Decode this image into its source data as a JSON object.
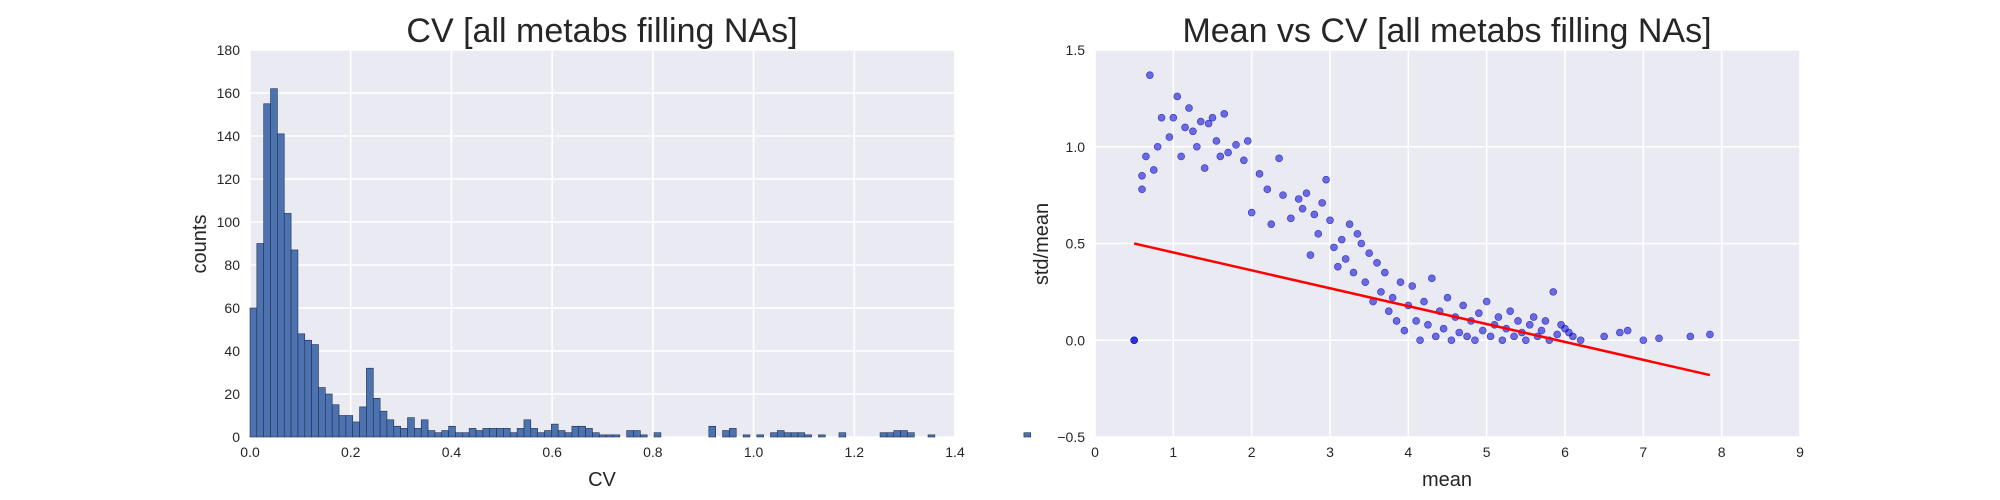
{
  "chart_data": [
    {
      "type": "bar",
      "title": "CV [all metabs filling NAs]",
      "xlabel": "CV",
      "ylabel": "counts",
      "xlim": [
        0,
        1.4
      ],
      "ylim": [
        0,
        180
      ],
      "xticks": [
        "0.0",
        "0.2",
        "0.4",
        "0.6",
        "0.8",
        "1.0",
        "1.2",
        "1.4"
      ],
      "yticks": [
        "0",
        "20",
        "40",
        "60",
        "80",
        "100",
        "120",
        "140",
        "160",
        "180"
      ],
      "grid": true,
      "color": "#4c72b0",
      "bin_width": 0.0136,
      "bin_start": 0.0,
      "counts": [
        60,
        90,
        155,
        162,
        141,
        104,
        87,
        48,
        45,
        43,
        23,
        20,
        15,
        10,
        10,
        7,
        14,
        32,
        18,
        12,
        8,
        5,
        4,
        9,
        4,
        8,
        3,
        2,
        3,
        5,
        2,
        2,
        4,
        3,
        4,
        4,
        4,
        4,
        2,
        4,
        8,
        4,
        2,
        3,
        6,
        3,
        2,
        5,
        5,
        4,
        2,
        1,
        1,
        1,
        0,
        3,
        3,
        1,
        0,
        2,
        0,
        0,
        0,
        0,
        0,
        0,
        0,
        5,
        0,
        3,
        4,
        0,
        1,
        0,
        1,
        0,
        2,
        3,
        2,
        2,
        2,
        1,
        0,
        1,
        0,
        0,
        2,
        0,
        0,
        0,
        0,
        0,
        2,
        2,
        3,
        3,
        2,
        0,
        0,
        1,
        0,
        0,
        0,
        0,
        0,
        0,
        0,
        0,
        0,
        0,
        0,
        0,
        0,
        2,
        0,
        0,
        0,
        0,
        0,
        0
      ]
    },
    {
      "type": "scatter",
      "title": "Mean vs CV [all metabs filling NAs]",
      "xlabel": "mean",
      "ylabel": "std/mean",
      "xlim": [
        0,
        9
      ],
      "ylim": [
        -0.5,
        1.5
      ],
      "xticks": [
        "0",
        "1",
        "2",
        "3",
        "4",
        "5",
        "6",
        "7",
        "8",
        "9"
      ],
      "yticks": [
        "−0.5",
        "0.0",
        "0.5",
        "1.0",
        "1.5"
      ],
      "grid": true,
      "point_color": "#0000cc",
      "line_color": "#ff0000",
      "fit_line": {
        "x": [
          0.5,
          7.85
        ],
        "y": [
          0.5,
          -0.18
        ]
      },
      "points": [
        [
          0.5,
          0.0
        ],
        [
          0.5,
          0.0
        ],
        [
          0.6,
          0.78
        ],
        [
          0.6,
          0.85
        ],
        [
          0.65,
          0.95
        ],
        [
          0.7,
          1.37
        ],
        [
          0.75,
          0.88
        ],
        [
          0.8,
          1.0
        ],
        [
          0.85,
          1.15
        ],
        [
          0.95,
          1.05
        ],
        [
          1.0,
          1.15
        ],
        [
          1.05,
          1.26
        ],
        [
          1.1,
          0.95
        ],
        [
          1.15,
          1.1
        ],
        [
          1.2,
          1.2
        ],
        [
          1.25,
          1.08
        ],
        [
          1.3,
          1.0
        ],
        [
          1.35,
          1.13
        ],
        [
          1.4,
          0.89
        ],
        [
          1.45,
          1.12
        ],
        [
          1.5,
          1.15
        ],
        [
          1.55,
          1.03
        ],
        [
          1.6,
          0.95
        ],
        [
          1.65,
          1.17
        ],
        [
          1.7,
          0.97
        ],
        [
          1.8,
          1.01
        ],
        [
          1.9,
          0.93
        ],
        [
          1.95,
          1.03
        ],
        [
          2.0,
          0.66
        ],
        [
          2.1,
          0.86
        ],
        [
          2.2,
          0.78
        ],
        [
          2.25,
          0.6
        ],
        [
          2.35,
          0.94
        ],
        [
          2.4,
          0.75
        ],
        [
          2.5,
          0.63
        ],
        [
          2.6,
          0.73
        ],
        [
          2.65,
          0.68
        ],
        [
          2.7,
          0.76
        ],
        [
          2.75,
          0.44
        ],
        [
          2.8,
          0.65
        ],
        [
          2.85,
          0.55
        ],
        [
          2.9,
          0.71
        ],
        [
          2.95,
          0.83
        ],
        [
          3.0,
          0.62
        ],
        [
          3.05,
          0.48
        ],
        [
          3.1,
          0.38
        ],
        [
          3.15,
          0.52
        ],
        [
          3.2,
          0.42
        ],
        [
          3.25,
          0.6
        ],
        [
          3.3,
          0.35
        ],
        [
          3.35,
          0.55
        ],
        [
          3.4,
          0.5
        ],
        [
          3.45,
          0.3
        ],
        [
          3.5,
          0.45
        ],
        [
          3.55,
          0.2
        ],
        [
          3.6,
          0.4
        ],
        [
          3.65,
          0.25
        ],
        [
          3.7,
          0.35
        ],
        [
          3.75,
          0.15
        ],
        [
          3.8,
          0.22
        ],
        [
          3.85,
          0.1
        ],
        [
          3.9,
          0.3
        ],
        [
          3.95,
          0.05
        ],
        [
          4.0,
          0.18
        ],
        [
          4.05,
          0.28
        ],
        [
          4.1,
          0.1
        ],
        [
          4.15,
          0.0
        ],
        [
          4.2,
          0.2
        ],
        [
          4.25,
          0.08
        ],
        [
          4.3,
          0.32
        ],
        [
          4.35,
          0.02
        ],
        [
          4.4,
          0.15
        ],
        [
          4.45,
          0.06
        ],
        [
          4.5,
          0.22
        ],
        [
          4.55,
          0.0
        ],
        [
          4.6,
          0.12
        ],
        [
          4.65,
          0.04
        ],
        [
          4.7,
          0.18
        ],
        [
          4.75,
          0.02
        ],
        [
          4.8,
          0.1
        ],
        [
          4.85,
          0.0
        ],
        [
          4.9,
          0.14
        ],
        [
          4.95,
          0.05
        ],
        [
          5.0,
          0.2
        ],
        [
          5.05,
          0.02
        ],
        [
          5.1,
          0.08
        ],
        [
          5.15,
          0.12
        ],
        [
          5.2,
          0.0
        ],
        [
          5.25,
          0.06
        ],
        [
          5.3,
          0.15
        ],
        [
          5.35,
          0.02
        ],
        [
          5.4,
          0.1
        ],
        [
          5.45,
          0.04
        ],
        [
          5.5,
          0.0
        ],
        [
          5.55,
          0.08
        ],
        [
          5.6,
          0.12
        ],
        [
          5.65,
          0.02
        ],
        [
          5.7,
          0.05
        ],
        [
          5.75,
          0.1
        ],
        [
          5.8,
          0.0
        ],
        [
          5.85,
          0.25
        ],
        [
          5.9,
          0.03
        ],
        [
          5.95,
          0.08
        ],
        [
          6.0,
          0.06
        ],
        [
          6.05,
          0.04
        ],
        [
          6.1,
          0.02
        ],
        [
          6.2,
          0.0
        ],
        [
          6.5,
          0.02
        ],
        [
          6.7,
          0.04
        ],
        [
          6.8,
          0.05
        ],
        [
          7.0,
          0.0
        ],
        [
          7.2,
          0.01
        ],
        [
          7.6,
          0.02
        ],
        [
          7.85,
          0.03
        ]
      ]
    }
  ]
}
